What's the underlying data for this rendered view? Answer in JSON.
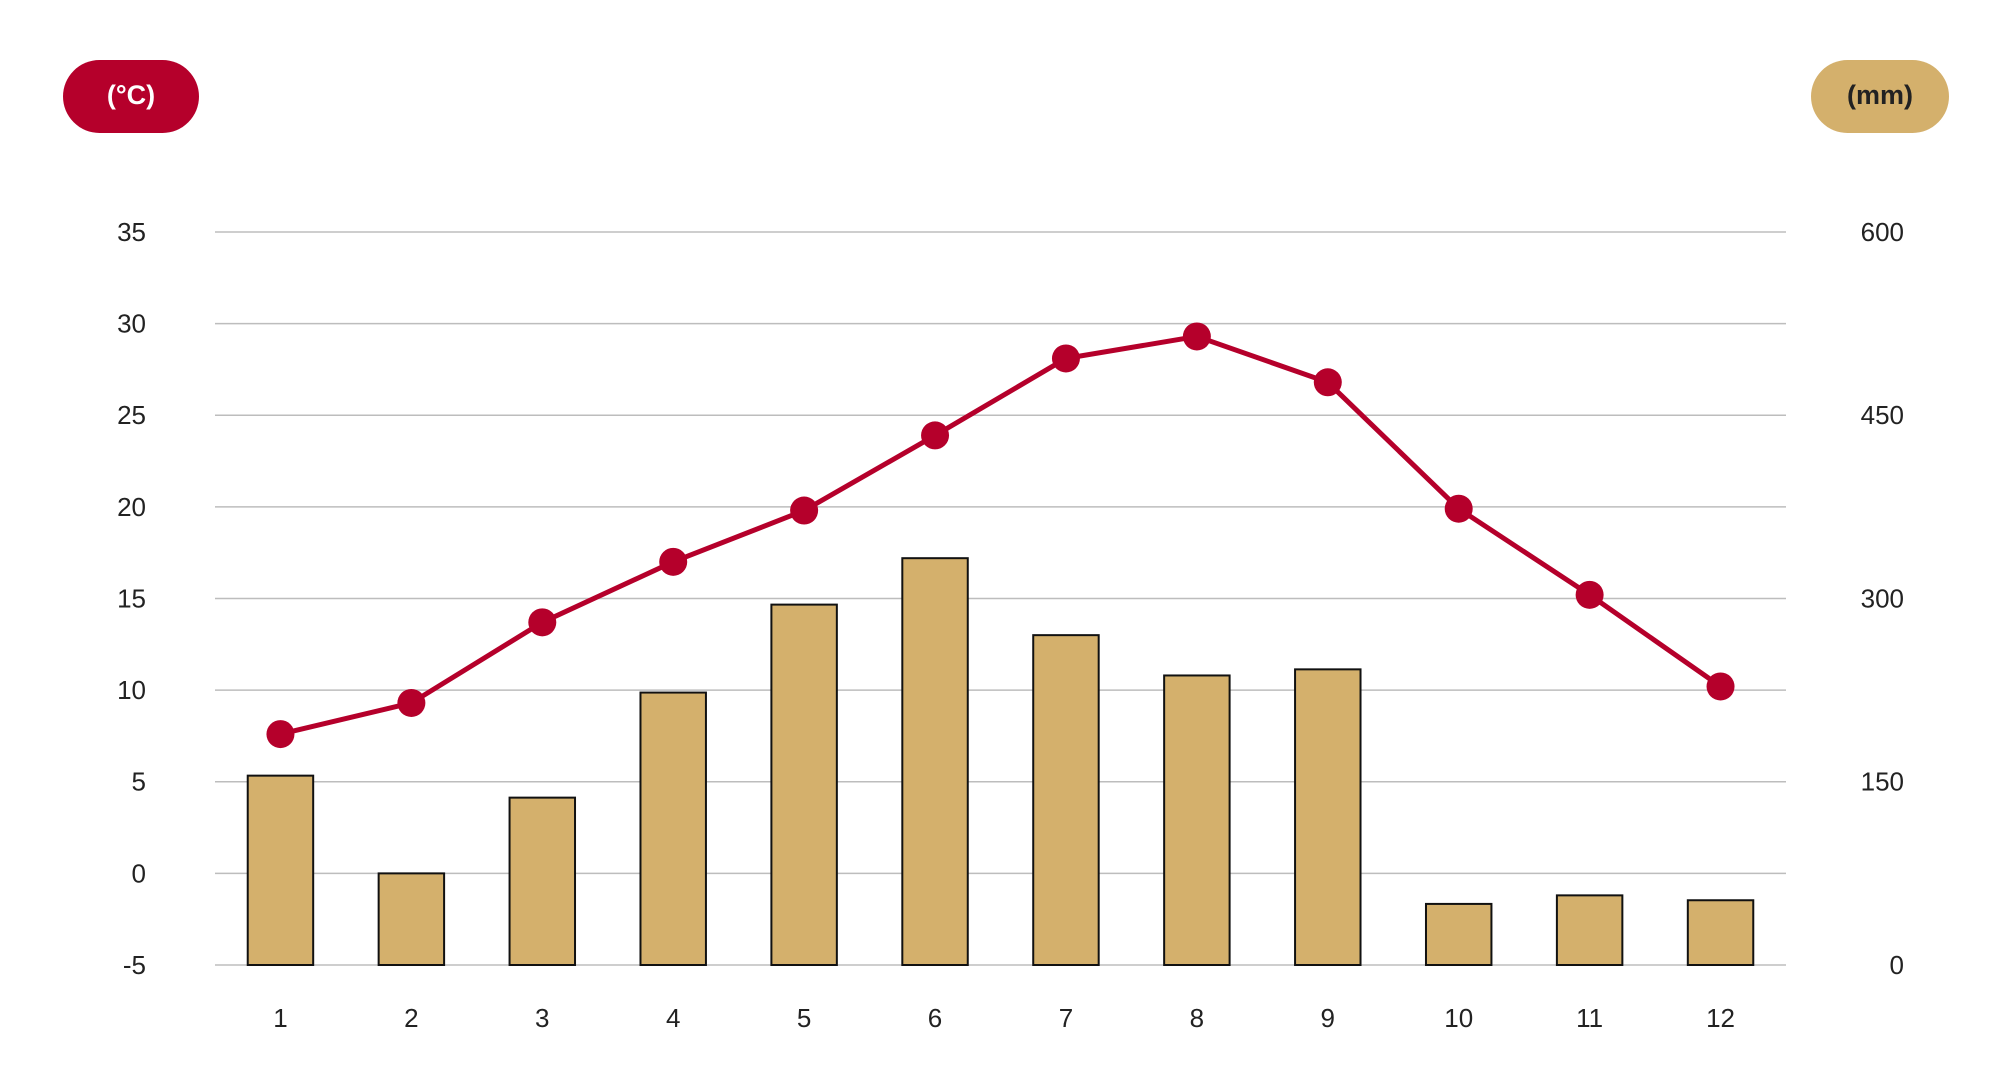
{
  "chart_data": {
    "type": "combo",
    "y_label": "(°C)",
    "y2_label": "(mm)",
    "categories": [
      "1",
      "2",
      "3",
      "4",
      "5",
      "6",
      "7",
      "8",
      "9",
      "10",
      "11",
      "12"
    ],
    "series": [
      {
        "type": "bar",
        "axis": "y2",
        "color": "#d4b06c",
        "values": [
          155,
          75,
          137,
          223,
          295,
          333,
          270,
          237,
          242,
          50,
          57,
          53
        ]
      },
      {
        "type": "line",
        "axis": "y",
        "color": "#b5002b",
        "values": [
          7.6,
          9.3,
          13.7,
          17.0,
          19.8,
          23.9,
          28.1,
          29.3,
          26.8,
          19.9,
          15.2,
          10.2
        ]
      }
    ],
    "ylim": [
      -5,
      35
    ],
    "yticks": [
      -5,
      0,
      5,
      10,
      15,
      20,
      25,
      30,
      35
    ],
    "y2lim": [
      0,
      600
    ],
    "y2ticks": [
      0,
      150,
      300,
      450,
      600
    ],
    "grid": true
  }
}
